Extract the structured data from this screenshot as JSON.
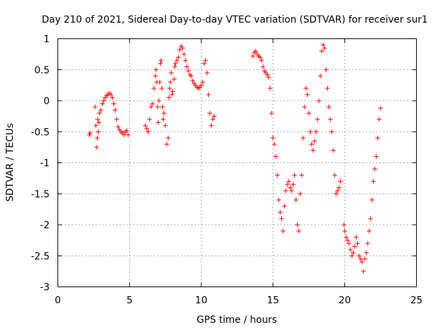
{
  "chart_data": {
    "type": "scatter",
    "title": "Day 210 of 2021, Sidereal Day-to-day VTEC variation (SDTVAR) for receiver sur1",
    "xlabel": "GPS time / hours",
    "ylabel": "SDTVAR / TECUs",
    "xlim": [
      0,
      25
    ],
    "ylim": [
      -3,
      1
    ],
    "xticks": [
      0,
      5,
      10,
      15,
      20,
      25
    ],
    "xtick_labels": [
      "0",
      "5",
      "10",
      "15",
      "20",
      "25"
    ],
    "yticks": [
      -3,
      -2.5,
      -2,
      -1.5,
      -1,
      -0.5,
      0,
      0.5,
      1
    ],
    "ytick_labels": [
      "-3",
      "-2.5",
      "-2",
      "-1.5",
      "-1",
      "-0.5",
      "0",
      "0.5",
      "1"
    ],
    "grid": true,
    "marker": "plus",
    "color": "#ff0000",
    "series": [
      {
        "name": "sur1",
        "x": [
          2.2,
          2.25,
          2.6,
          2.65,
          2.7,
          2.75,
          2.78,
          2.82,
          2.86,
          2.9,
          3.0,
          3.1,
          3.2,
          3.3,
          3.4,
          3.5,
          3.6,
          3.7,
          3.8,
          3.9,
          4.0,
          4.1,
          4.2,
          4.3,
          4.4,
          4.5,
          4.6,
          4.7,
          4.8,
          4.9,
          6.1,
          6.2,
          6.3,
          6.4,
          6.5,
          6.6,
          6.7,
          6.8,
          6.85,
          6.9,
          6.95,
          7.0,
          7.05,
          7.1,
          7.15,
          7.2,
          7.25,
          7.3,
          7.35,
          7.4,
          7.5,
          7.6,
          7.7,
          7.75,
          7.8,
          7.85,
          7.9,
          7.95,
          8.0,
          8.1,
          8.15,
          8.2,
          8.3,
          8.4,
          8.5,
          8.6,
          8.7,
          8.8,
          8.9,
          9.0,
          9.1,
          9.2,
          9.3,
          9.4,
          9.5,
          9.6,
          9.7,
          9.8,
          9.9,
          10.0,
          10.1,
          10.2,
          10.3,
          10.4,
          10.5,
          10.6,
          10.7,
          10.8,
          10.9,
          13.6,
          13.7,
          13.8,
          13.9,
          14.0,
          14.1,
          14.2,
          14.3,
          14.4,
          14.5,
          14.6,
          14.7,
          14.8,
          14.9,
          15.0,
          15.1,
          15.2,
          15.3,
          15.4,
          15.5,
          15.6,
          15.7,
          15.8,
          15.9,
          16.0,
          16.1,
          16.2,
          16.3,
          16.4,
          16.5,
          16.6,
          16.7,
          16.8,
          16.9,
          17.0,
          17.1,
          17.2,
          17.3,
          17.4,
          17.5,
          17.6,
          17.7,
          17.8,
          17.9,
          18.0,
          18.1,
          18.2,
          18.3,
          18.4,
          18.5,
          18.6,
          18.7,
          18.8,
          18.9,
          19.0,
          19.1,
          19.2,
          19.3,
          19.4,
          19.5,
          19.6,
          19.7,
          19.95,
          20.0,
          20.1,
          20.2,
          20.3,
          20.4,
          20.5,
          20.6,
          20.7,
          20.8,
          20.9,
          21.0,
          21.1,
          21.2,
          21.3,
          21.4,
          21.5,
          21.6,
          21.7,
          21.8,
          21.9,
          22.0,
          22.1,
          22.2,
          22.3,
          22.4,
          22.5
        ],
        "y": [
          -0.55,
          -0.52,
          -0.1,
          -0.4,
          -0.75,
          -0.6,
          -0.3,
          -0.5,
          -0.35,
          -0.2,
          -0.15,
          -0.05,
          0.0,
          0.05,
          0.08,
          0.1,
          0.12,
          0.1,
          0.05,
          -0.05,
          -0.15,
          -0.3,
          -0.42,
          -0.47,
          -0.5,
          -0.52,
          -0.55,
          -0.5,
          -0.48,
          -0.55,
          -0.4,
          -0.45,
          -0.5,
          -0.3,
          -0.1,
          -0.05,
          0.2,
          0.4,
          0.5,
          0.3,
          -0.1,
          -0.35,
          0.0,
          0.3,
          0.6,
          0.65,
          0.2,
          -0.1,
          -0.3,
          -0.2,
          -0.4,
          -0.7,
          -0.6,
          0.05,
          0.2,
          0.3,
          0.45,
          0.1,
          0.15,
          0.35,
          0.55,
          0.6,
          0.65,
          0.7,
          0.82,
          0.88,
          0.85,
          0.75,
          0.65,
          0.55,
          0.48,
          0.42,
          0.4,
          0.32,
          0.28,
          0.25,
          0.22,
          0.2,
          0.22,
          0.25,
          0.3,
          0.6,
          0.65,
          0.45,
          0.1,
          -0.2,
          -0.4,
          -0.3,
          -0.25,
          0.72,
          0.78,
          0.8,
          0.75,
          0.72,
          0.7,
          0.65,
          0.55,
          0.48,
          0.45,
          0.42,
          0.38,
          0.2,
          -0.2,
          -0.6,
          -0.7,
          -0.9,
          -1.2,
          -1.6,
          -1.8,
          -1.9,
          -2.1,
          -1.7,
          -1.45,
          -1.35,
          -1.3,
          -1.4,
          -1.45,
          -1.35,
          -1.2,
          -1.6,
          -2.0,
          -2.1,
          -1.5,
          -1.2,
          -0.6,
          -0.1,
          0.2,
          0.1,
          -0.2,
          -0.5,
          -0.7,
          -0.8,
          -0.65,
          -0.5,
          -0.3,
          0.0,
          0.4,
          0.8,
          0.9,
          0.85,
          0.5,
          0.2,
          -0.1,
          -0.3,
          -0.5,
          -0.8,
          -1.2,
          -1.5,
          -1.45,
          -1.4,
          -1.3,
          -2.0,
          -2.1,
          -2.2,
          -2.25,
          -2.3,
          -2.4,
          -2.5,
          -2.45,
          -2.35,
          -2.2,
          -2.3,
          -2.5,
          -2.55,
          -2.6,
          -2.75,
          -2.55,
          -2.45,
          -2.3,
          -2.1,
          -1.9,
          -1.6,
          -1.3,
          -1.1,
          -0.9,
          -0.6,
          -0.3,
          -0.12
        ]
      }
    ]
  }
}
